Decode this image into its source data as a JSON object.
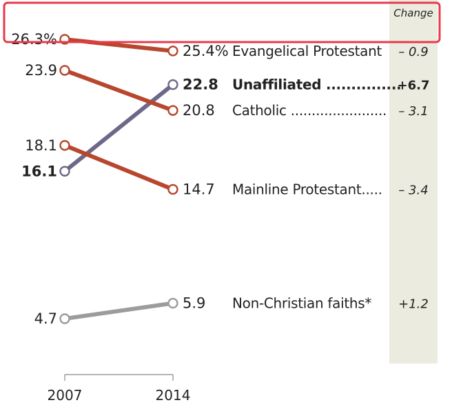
{
  "chart_data": {
    "type": "line",
    "title": "",
    "x": [
      "2007",
      "2014"
    ],
    "change_header": "Change",
    "highlight_color": "#e8394b",
    "series": [
      {
        "name": "Evangelical Protestant",
        "values": [
          26.3,
          25.4
        ],
        "labels": [
          "26.3%",
          "25.4%"
        ],
        "change": "– 0.9",
        "color": "#b8472e",
        "bold": false,
        "leader": ""
      },
      {
        "name": "Unaffiliated",
        "values": [
          16.1,
          22.8
        ],
        "labels": [
          "16.1",
          "22.8"
        ],
        "change": "+6.7",
        "color": "#6f6789",
        "bold": true,
        "leader": " ..............."
      },
      {
        "name": "Catholic",
        "values": [
          23.9,
          20.8
        ],
        "labels": [
          "23.9",
          "20.8"
        ],
        "change": "– 3.1",
        "color": "#b8472e",
        "bold": false,
        "leader": " ......................."
      },
      {
        "name": "Mainline Protestant",
        "values": [
          18.1,
          14.7
        ],
        "labels": [
          "18.1",
          "14.7"
        ],
        "change": "– 3.4",
        "color": "#b8472e",
        "bold": false,
        "leader": "....."
      },
      {
        "name": "Non-Christian faiths*",
        "values": [
          4.7,
          5.9
        ],
        "labels": [
          "4.7",
          "5.9"
        ],
        "change": "+1.2",
        "color": "#9c9c9c",
        "bold": false,
        "leader": ""
      }
    ]
  }
}
